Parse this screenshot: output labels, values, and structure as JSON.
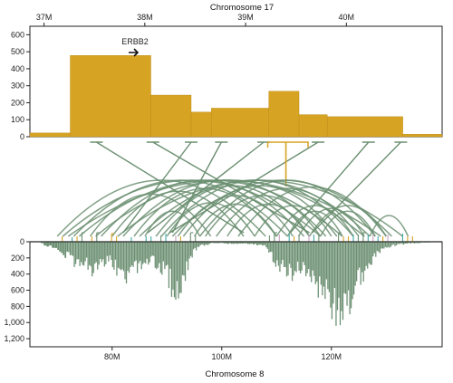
{
  "chart_data": [
    {
      "type": "bar",
      "title": "Chromosome 17",
      "x_ticks": [
        "37M",
        "38M",
        "39M",
        "40M"
      ],
      "x_tick_values": [
        37,
        38,
        39,
        40
      ],
      "xlim": [
        36.86,
        40.95
      ],
      "y_ticks": [
        "0",
        "100",
        "200",
        "300",
        "400",
        "500",
        "600"
      ],
      "ylim": [
        0,
        650
      ],
      "annotation": "ERBB2",
      "color": "#d7a323",
      "segments": [
        {
          "start": 36.86,
          "end": 37.26,
          "value": 22
        },
        {
          "start": 37.26,
          "end": 38.06,
          "value": 478
        },
        {
          "start": 38.06,
          "end": 38.46,
          "value": 245
        },
        {
          "start": 38.46,
          "end": 38.66,
          "value": 145
        },
        {
          "start": 38.66,
          "end": 39.23,
          "value": 168
        },
        {
          "start": 39.23,
          "end": 39.53,
          "value": 268
        },
        {
          "start": 39.53,
          "end": 39.81,
          "value": 130
        },
        {
          "start": 39.81,
          "end": 40.56,
          "value": 118
        },
        {
          "start": 40.56,
          "end": 40.95,
          "value": 15
        }
      ]
    },
    {
      "type": "bar",
      "title": "Chromosome 8",
      "x_ticks": [
        "80M",
        "100M",
        "120M"
      ],
      "x_tick_values": [
        80,
        100,
        120
      ],
      "xlim": [
        65,
        140.2
      ],
      "y_ticks": [
        "0",
        "200",
        "400",
        "600",
        "800",
        "1,000",
        "1,200"
      ],
      "ylim": [
        1300,
        0
      ],
      "color": "#6b8f71",
      "profile": [
        {
          "x": 67.0,
          "value": 30
        },
        {
          "x": 70.0,
          "value": 120
        },
        {
          "x": 72.0,
          "value": 230
        },
        {
          "x": 73.5,
          "value": 330
        },
        {
          "x": 75.0,
          "value": 280
        },
        {
          "x": 76.5,
          "value": 430
        },
        {
          "x": 78.0,
          "value": 360
        },
        {
          "x": 79.5,
          "value": 300
        },
        {
          "x": 81.0,
          "value": 440
        },
        {
          "x": 82.5,
          "value": 560
        },
        {
          "x": 84.0,
          "value": 380
        },
        {
          "x": 85.5,
          "value": 320
        },
        {
          "x": 87.0,
          "value": 270
        },
        {
          "x": 88.5,
          "value": 330
        },
        {
          "x": 90.0,
          "value": 470
        },
        {
          "x": 91.5,
          "value": 800
        },
        {
          "x": 93.0,
          "value": 560
        },
        {
          "x": 94.5,
          "value": 180
        },
        {
          "x": 96.0,
          "value": 60
        },
        {
          "x": 98.0,
          "value": 25
        },
        {
          "x": 100.0,
          "value": 20
        },
        {
          "x": 102.0,
          "value": 30
        },
        {
          "x": 104.0,
          "value": 25
        },
        {
          "x": 106.0,
          "value": 40
        },
        {
          "x": 108.0,
          "value": 70
        },
        {
          "x": 109.5,
          "value": 280
        },
        {
          "x": 111.0,
          "value": 370
        },
        {
          "x": 112.5,
          "value": 480
        },
        {
          "x": 114.0,
          "value": 380
        },
        {
          "x": 115.5,
          "value": 530
        },
        {
          "x": 117.0,
          "value": 640
        },
        {
          "x": 118.5,
          "value": 760
        },
        {
          "x": 120.0,
          "value": 930
        },
        {
          "x": 121.5,
          "value": 970
        },
        {
          "x": 123.0,
          "value": 880
        },
        {
          "x": 124.5,
          "value": 650
        },
        {
          "x": 126.0,
          "value": 420
        },
        {
          "x": 127.5,
          "value": 240
        },
        {
          "x": 129.0,
          "value": 120
        },
        {
          "x": 130.5,
          "value": 70
        },
        {
          "x": 132.0,
          "value": 40
        },
        {
          "x": 134.0,
          "value": 25
        },
        {
          "x": 136.0,
          "value": 15
        },
        {
          "x": 138.0,
          "value": 10
        }
      ],
      "arc_color": "#6b8f71",
      "arcs": [
        [
          70,
          108
        ],
        [
          71,
          118
        ],
        [
          72,
          129
        ],
        [
          73,
          112
        ],
        [
          74,
          122
        ],
        [
          76,
          98
        ],
        [
          77,
          126
        ],
        [
          78,
          115
        ],
        [
          80,
          104
        ],
        [
          81,
          133
        ],
        [
          82,
          119
        ],
        [
          84,
          110
        ],
        [
          85,
          127
        ],
        [
          86,
          96
        ],
        [
          88,
          116
        ],
        [
          89,
          124
        ],
        [
          90,
          106
        ],
        [
          91,
          131
        ],
        [
          92,
          113
        ],
        [
          93,
          121
        ],
        [
          95,
          110
        ],
        [
          96,
          128
        ],
        [
          97,
          118
        ],
        [
          99,
          125
        ],
        [
          101,
          116
        ],
        [
          103,
          130
        ],
        [
          106,
          120
        ],
        [
          110,
          124
        ],
        [
          112,
          122
        ],
        [
          114,
          126
        ],
        [
          116,
          130
        ],
        [
          118,
          128
        ],
        [
          127,
          134
        ]
      ],
      "track_colors": [
        "#d7a323",
        "#6b8f71",
        "#c9a3c4",
        "#41a7a3"
      ]
    }
  ],
  "links": {
    "color": "#6b8f71",
    "highlight_color": "#d7a323",
    "pairs": [
      {
        "chr17": 37.52,
        "chr8": 104.0
      },
      {
        "chr17": 38.08,
        "chr8": 116.0
      },
      {
        "chr17": 38.46,
        "chr8": 82.0
      },
      {
        "chr17": 38.76,
        "chr8": 91.0
      },
      {
        "chr17": 39.18,
        "chr8": 86.5
      },
      {
        "chr17": 39.72,
        "chr8": 90.5
      },
      {
        "chr17": 40.22,
        "chr8": 112.5
      },
      {
        "chr17": 40.54,
        "chr8": 116.5
      }
    ],
    "highlight": {
      "chr17_start": 39.22,
      "chr17_end": 39.62,
      "chr17_mark": 39.4
    }
  }
}
